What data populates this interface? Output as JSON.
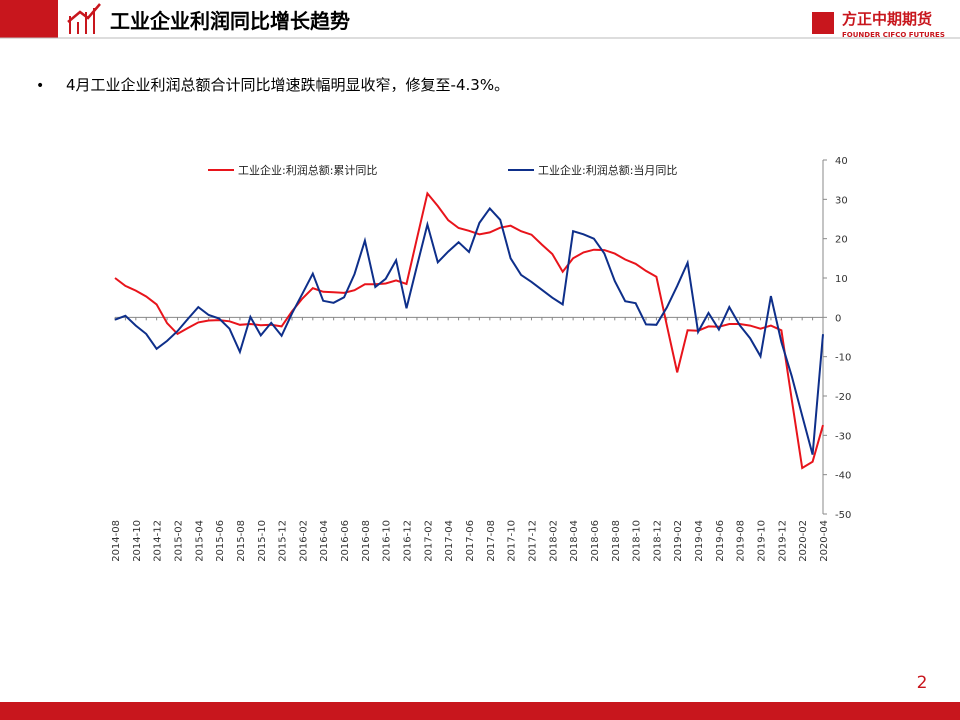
{
  "header": {
    "title": "工业企业利润同比增长趋势",
    "logo": "方正中期期货",
    "logo_sub": "FOUNDER CIFCO FUTURES"
  },
  "bullet": "4月工业企业利润总额合计同比增速跌幅明显收窄，修复至-4.3%。",
  "page_number": "2",
  "chart_data": {
    "type": "line",
    "categories": [
      "2014-08",
      null,
      "2014-10",
      null,
      "2014-12",
      null,
      "2015-02",
      null,
      "2015-04",
      null,
      "2015-06",
      null,
      "2015-08",
      null,
      "2015-10",
      null,
      "2015-12",
      null,
      "2016-02",
      null,
      "2016-04",
      null,
      "2016-06",
      null,
      "2016-08",
      null,
      "2016-10",
      null,
      "2016-12",
      null,
      "2017-02",
      null,
      "2017-04",
      null,
      "2017-06",
      null,
      "2017-08",
      null,
      "2017-10",
      null,
      "2017-12",
      null,
      "2018-02",
      null,
      "2018-04",
      null,
      "2018-06",
      null,
      "2018-08",
      null,
      "2018-10",
      null,
      "2018-12",
      null,
      "2019-02",
      null,
      "2019-04",
      null,
      "2019-06",
      null,
      "2019-08",
      null,
      "2019-10",
      null,
      "2019-12",
      null,
      "2020-02",
      null,
      "2020-04"
    ],
    "series": [
      {
        "name": "工业企业:利润总额:累计同比",
        "color": "#e8141b",
        "values": [
          10.0,
          8.0,
          6.8,
          5.3,
          3.3,
          -1.5,
          -4.2,
          -2.7,
          -1.3,
          -0.8,
          -0.7,
          -1.0,
          -1.9,
          -1.7,
          -2.0,
          -1.9,
          -2.3,
          1.5,
          4.8,
          7.4,
          6.5,
          6.4,
          6.2,
          6.9,
          8.4,
          8.4,
          8.6,
          9.4,
          8.5,
          20.0,
          31.5,
          28.3,
          24.7,
          22.7,
          22.0,
          21.1,
          21.6,
          22.8,
          23.3,
          21.9,
          21.0,
          18.5,
          16.1,
          11.6,
          15.0,
          16.5,
          17.2,
          17.1,
          16.2,
          14.7,
          13.6,
          11.8,
          10.3,
          -2.0,
          -14.0,
          -3.3,
          -3.4,
          -2.3,
          -2.4,
          -1.7,
          -1.7,
          -2.1,
          -2.9,
          -2.1,
          -3.3,
          -21.0,
          -38.3,
          -36.7,
          -27.4
        ]
      },
      {
        "name": "工业企业:利润总额:当月同比",
        "color": "#0e2f8a",
        "values": [
          -0.6,
          0.4,
          -2.1,
          -4.2,
          -8.0,
          -6.0,
          -3.5,
          -0.4,
          2.6,
          0.6,
          -0.3,
          -2.9,
          -8.8,
          0.1,
          -4.6,
          -1.4,
          -4.7,
          1.0,
          6.0,
          11.1,
          4.2,
          3.7,
          5.1,
          11.0,
          19.5,
          7.7,
          9.8,
          14.5,
          2.3,
          13.0,
          23.6,
          14.0,
          16.7,
          19.1,
          16.6,
          24.0,
          27.7,
          24.8,
          15.0,
          10.8,
          9.0,
          7.0,
          5.0,
          3.3,
          21.9,
          21.1,
          20.0,
          16.2,
          9.2,
          4.1,
          3.6,
          -1.8,
          -1.9,
          2.5,
          8.0,
          13.9,
          -3.7,
          1.1,
          -3.1,
          2.6,
          -2.0,
          -5.3,
          -9.9,
          5.4,
          -6.3,
          -15.0,
          -25.0,
          -34.9,
          -4.3
        ]
      }
    ],
    "ylim": [
      -50,
      40
    ],
    "yticks": [
      -50,
      -40,
      -30,
      -20,
      -10,
      0,
      10,
      20,
      30,
      40
    ],
    "legend": "top"
  }
}
